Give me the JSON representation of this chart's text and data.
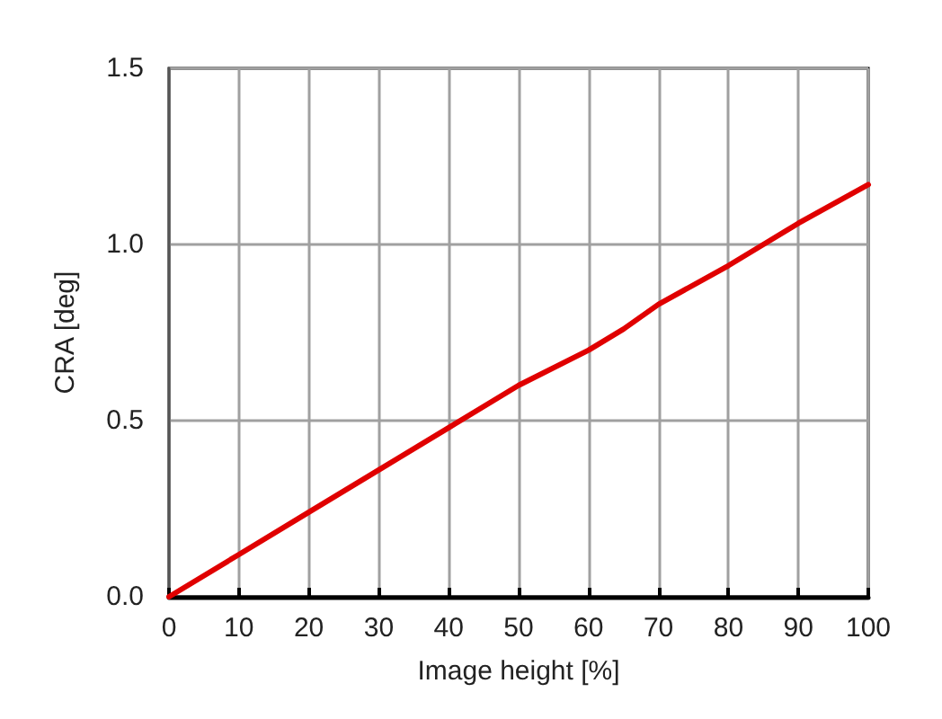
{
  "chart_data": {
    "type": "line",
    "xlabel": "Image height [%]",
    "ylabel": "CRA [deg]",
    "x": [
      0,
      10,
      20,
      30,
      40,
      50,
      60,
      65,
      70,
      80,
      85,
      90,
      100
    ],
    "series": [
      {
        "color": "#e00000",
        "values": [
          0,
          0.12,
          0.24,
          0.36,
          0.48,
          0.6,
          0.7,
          0.76,
          0.83,
          0.94,
          1.0,
          1.06,
          1.17
        ]
      }
    ],
    "xlim": [
      0,
      100
    ],
    "ylim": [
      0,
      1.5
    ],
    "xticks": [
      0,
      10,
      20,
      30,
      40,
      50,
      60,
      70,
      80,
      90,
      100
    ],
    "yticks": [
      {
        "value": 0,
        "label": "0.0"
      },
      {
        "value": 0.5,
        "label": "0.5"
      },
      {
        "value": 1,
        "label": "1.0"
      },
      {
        "value": 1.5,
        "label": "1.5"
      }
    ],
    "grid": true,
    "marker": "none",
    "line_style": "solid"
  }
}
